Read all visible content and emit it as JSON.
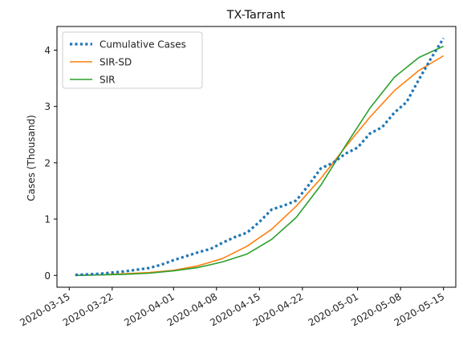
{
  "chart_data": {
    "type": "line",
    "title": "TX-Tarrant",
    "xlabel": "",
    "ylabel": "Cases (Thousand)",
    "x_type": "date",
    "xlim": [
      "2020-03-13",
      "2020-05-17"
    ],
    "ylim": [
      -0.21,
      4.42
    ],
    "x_ticks": [
      "2020-03-15",
      "2020-03-22",
      "2020-04-01",
      "2020-04-08",
      "2020-04-15",
      "2020-04-22",
      "2020-05-01",
      "2020-05-08",
      "2020-05-15"
    ],
    "y_ticks": [
      0,
      1,
      2,
      3,
      4
    ],
    "grid": false,
    "legend_position": "top-left",
    "series": [
      {
        "name": "Cumulative Cases",
        "color": "#1f77b4",
        "style": "dotted",
        "x": [
          "2020-03-16",
          "2020-03-18",
          "2020-03-20",
          "2020-03-22",
          "2020-03-24",
          "2020-03-26",
          "2020-03-28",
          "2020-03-30",
          "2020-04-01",
          "2020-04-03",
          "2020-04-05",
          "2020-04-07",
          "2020-04-09",
          "2020-04-11",
          "2020-04-13",
          "2020-04-15",
          "2020-04-17",
          "2020-04-19",
          "2020-04-21",
          "2020-04-23",
          "2020-04-25",
          "2020-04-27",
          "2020-04-29",
          "2020-05-01",
          "2020-05-03",
          "2020-05-05",
          "2020-05-07",
          "2020-05-09",
          "2020-05-11",
          "2020-05-13",
          "2020-05-15"
        ],
        "y": [
          0.01,
          0.02,
          0.03,
          0.05,
          0.07,
          0.1,
          0.13,
          0.19,
          0.27,
          0.34,
          0.41,
          0.47,
          0.58,
          0.68,
          0.76,
          0.95,
          1.17,
          1.24,
          1.33,
          1.6,
          1.9,
          2.0,
          2.16,
          2.27,
          2.52,
          2.63,
          2.89,
          3.08,
          3.48,
          3.86,
          4.21
        ]
      },
      {
        "name": "SIR-SD",
        "color": "#ff7f0e",
        "style": "solid",
        "x": [
          "2020-03-16",
          "2020-03-20",
          "2020-03-24",
          "2020-03-28",
          "2020-04-01",
          "2020-04-05",
          "2020-04-09",
          "2020-04-13",
          "2020-04-17",
          "2020-04-21",
          "2020-04-25",
          "2020-04-29",
          "2020-05-03",
          "2020-05-07",
          "2020-05-11",
          "2020-05-15"
        ],
        "y": [
          0.0,
          0.01,
          0.03,
          0.05,
          0.09,
          0.17,
          0.3,
          0.52,
          0.82,
          1.23,
          1.72,
          2.28,
          2.81,
          3.28,
          3.64,
          3.9
        ]
      },
      {
        "name": "SIR",
        "color": "#2ca02c",
        "style": "solid",
        "x": [
          "2020-03-16",
          "2020-03-20",
          "2020-03-24",
          "2020-03-28",
          "2020-04-01",
          "2020-04-05",
          "2020-04-09",
          "2020-04-13",
          "2020-04-17",
          "2020-04-21",
          "2020-04-25",
          "2020-04-29",
          "2020-05-03",
          "2020-05-07",
          "2020-05-11",
          "2020-05-15"
        ],
        "y": [
          0.0,
          0.01,
          0.02,
          0.04,
          0.08,
          0.14,
          0.24,
          0.38,
          0.64,
          1.03,
          1.6,
          2.3,
          2.97,
          3.52,
          3.87,
          4.07
        ]
      }
    ]
  }
}
